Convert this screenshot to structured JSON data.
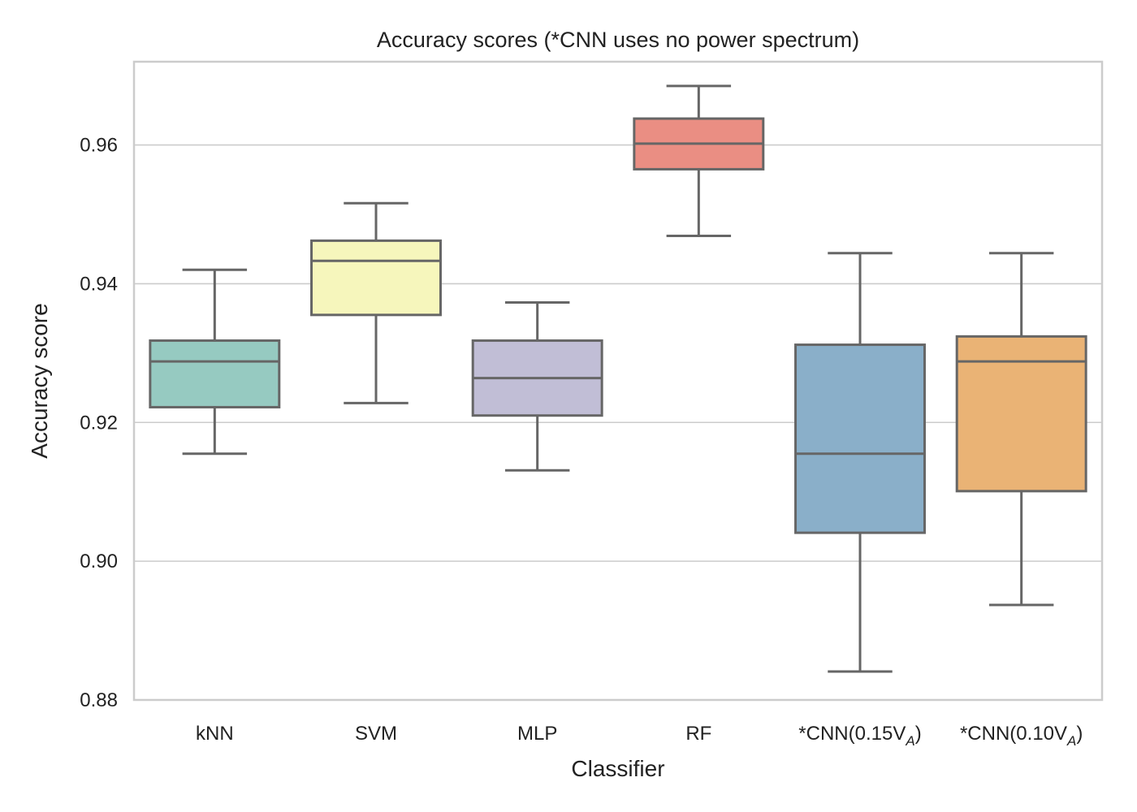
{
  "chart_data": {
    "type": "box",
    "title": "Accuracy scores (*CNN uses no power spectrum)",
    "xlabel": "Classifier",
    "ylabel": "Accuracy score",
    "ylim": [
      0.88,
      0.972
    ],
    "yticks": [
      0.88,
      0.9,
      0.92,
      0.94,
      0.96
    ],
    "ytick_labels": [
      "0.88",
      "0.90",
      "0.92",
      "0.94",
      "0.96"
    ],
    "grid": "horizontal",
    "categories": [
      {
        "label": "kNN",
        "label_sub": ""
      },
      {
        "label": "SVM",
        "label_sub": ""
      },
      {
        "label": "MLP",
        "label_sub": ""
      },
      {
        "label": "RF",
        "label_sub": ""
      },
      {
        "label": "*CNN(0.15V",
        "label_sub": "A",
        "label_suffix": ")"
      },
      {
        "label": "*CNN(0.10V",
        "label_sub": "A",
        "label_suffix": ")"
      }
    ],
    "boxes": [
      {
        "whisker_low": 0.9155,
        "q1": 0.9222,
        "median": 0.9288,
        "q3": 0.9318,
        "whisker_high": 0.942,
        "color": "#96cac1"
      },
      {
        "whisker_low": 0.9228,
        "q1": 0.9355,
        "median": 0.9433,
        "q3": 0.9462,
        "whisker_high": 0.9516,
        "color": "#f6f6bc"
      },
      {
        "whisker_low": 0.9131,
        "q1": 0.921,
        "median": 0.9264,
        "q3": 0.9318,
        "whisker_high": 0.9373,
        "color": "#c1bed6"
      },
      {
        "whisker_low": 0.9469,
        "q1": 0.9565,
        "median": 0.9602,
        "q3": 0.9638,
        "whisker_high": 0.9685,
        "color": "#ea8e83"
      },
      {
        "whisker_low": 0.8841,
        "q1": 0.9041,
        "median": 0.9155,
        "q3": 0.9312,
        "whisker_high": 0.9444,
        "color": "#8aafc9"
      },
      {
        "whisker_low": 0.8937,
        "q1": 0.9101,
        "median": 0.9288,
        "q3": 0.9324,
        "whisker_high": 0.9444,
        "color": "#eab375"
      }
    ],
    "line_color": "#666666",
    "grid_color": "#cccccc"
  }
}
